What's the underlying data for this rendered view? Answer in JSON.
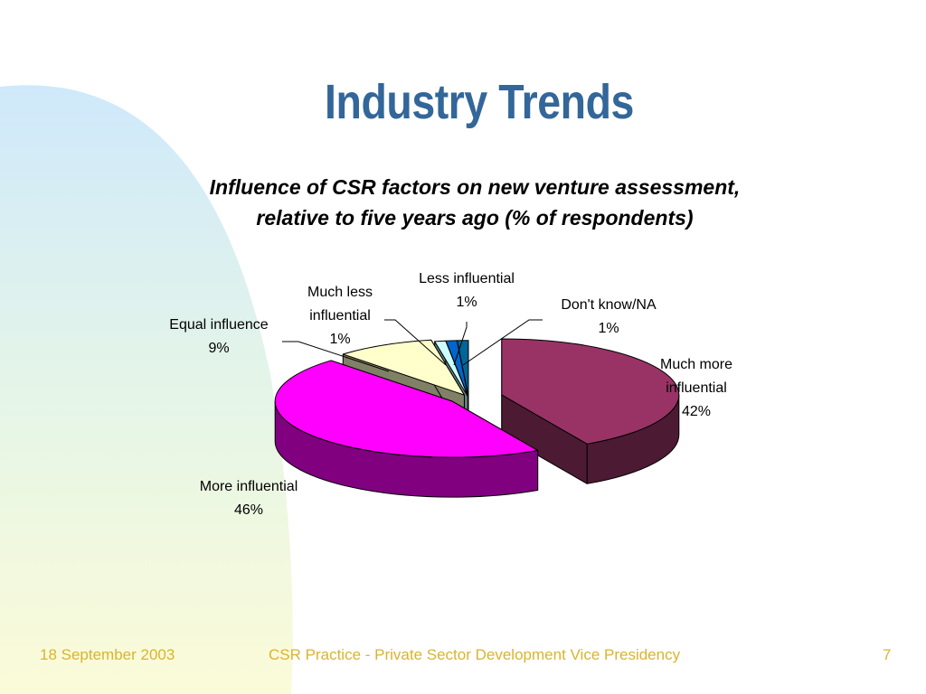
{
  "slide": {
    "title": "Industry Trends"
  },
  "footer": {
    "date": "18 September 2003",
    "center": "CSR Practice - Private Sector Development Vice Presidency",
    "page": "7"
  },
  "colors": {
    "title": "#336699",
    "footer": "#d9b430"
  },
  "chart_data": {
    "type": "pie",
    "style": "3d-exploded",
    "title_lines": [
      "Influence of CSR factors on new venture assessment,",
      "relative to five years ago (% of respondents)"
    ],
    "slices": [
      {
        "label_lines": [
          "Much more",
          "influential"
        ],
        "value": 42,
        "value_label": "42%",
        "color": "#993366",
        "side_color": "#4d1a33"
      },
      {
        "label_lines": [
          "More influential"
        ],
        "value": 46,
        "value_label": "46%",
        "color": "#ff00ff",
        "side_color": "#800080"
      },
      {
        "label_lines": [
          "Equal influence"
        ],
        "value": 9,
        "value_label": "9%",
        "color": "#ffffcc",
        "side_color": "#808066"
      },
      {
        "label_lines": [
          "Much less",
          "influential"
        ],
        "value": 1,
        "value_label": "1%",
        "color": "#ccffff",
        "side_color": "#668080"
      },
      {
        "label_lines": [
          "Less influential"
        ],
        "value": 1,
        "value_label": "1%",
        "color": "#0066cc",
        "side_color": "#003366"
      },
      {
        "label_lines": [
          "Don't know/NA"
        ],
        "value": 1,
        "value_label": "1%",
        "color": "#006699",
        "side_color": "#00334d"
      }
    ],
    "legend": "none"
  }
}
